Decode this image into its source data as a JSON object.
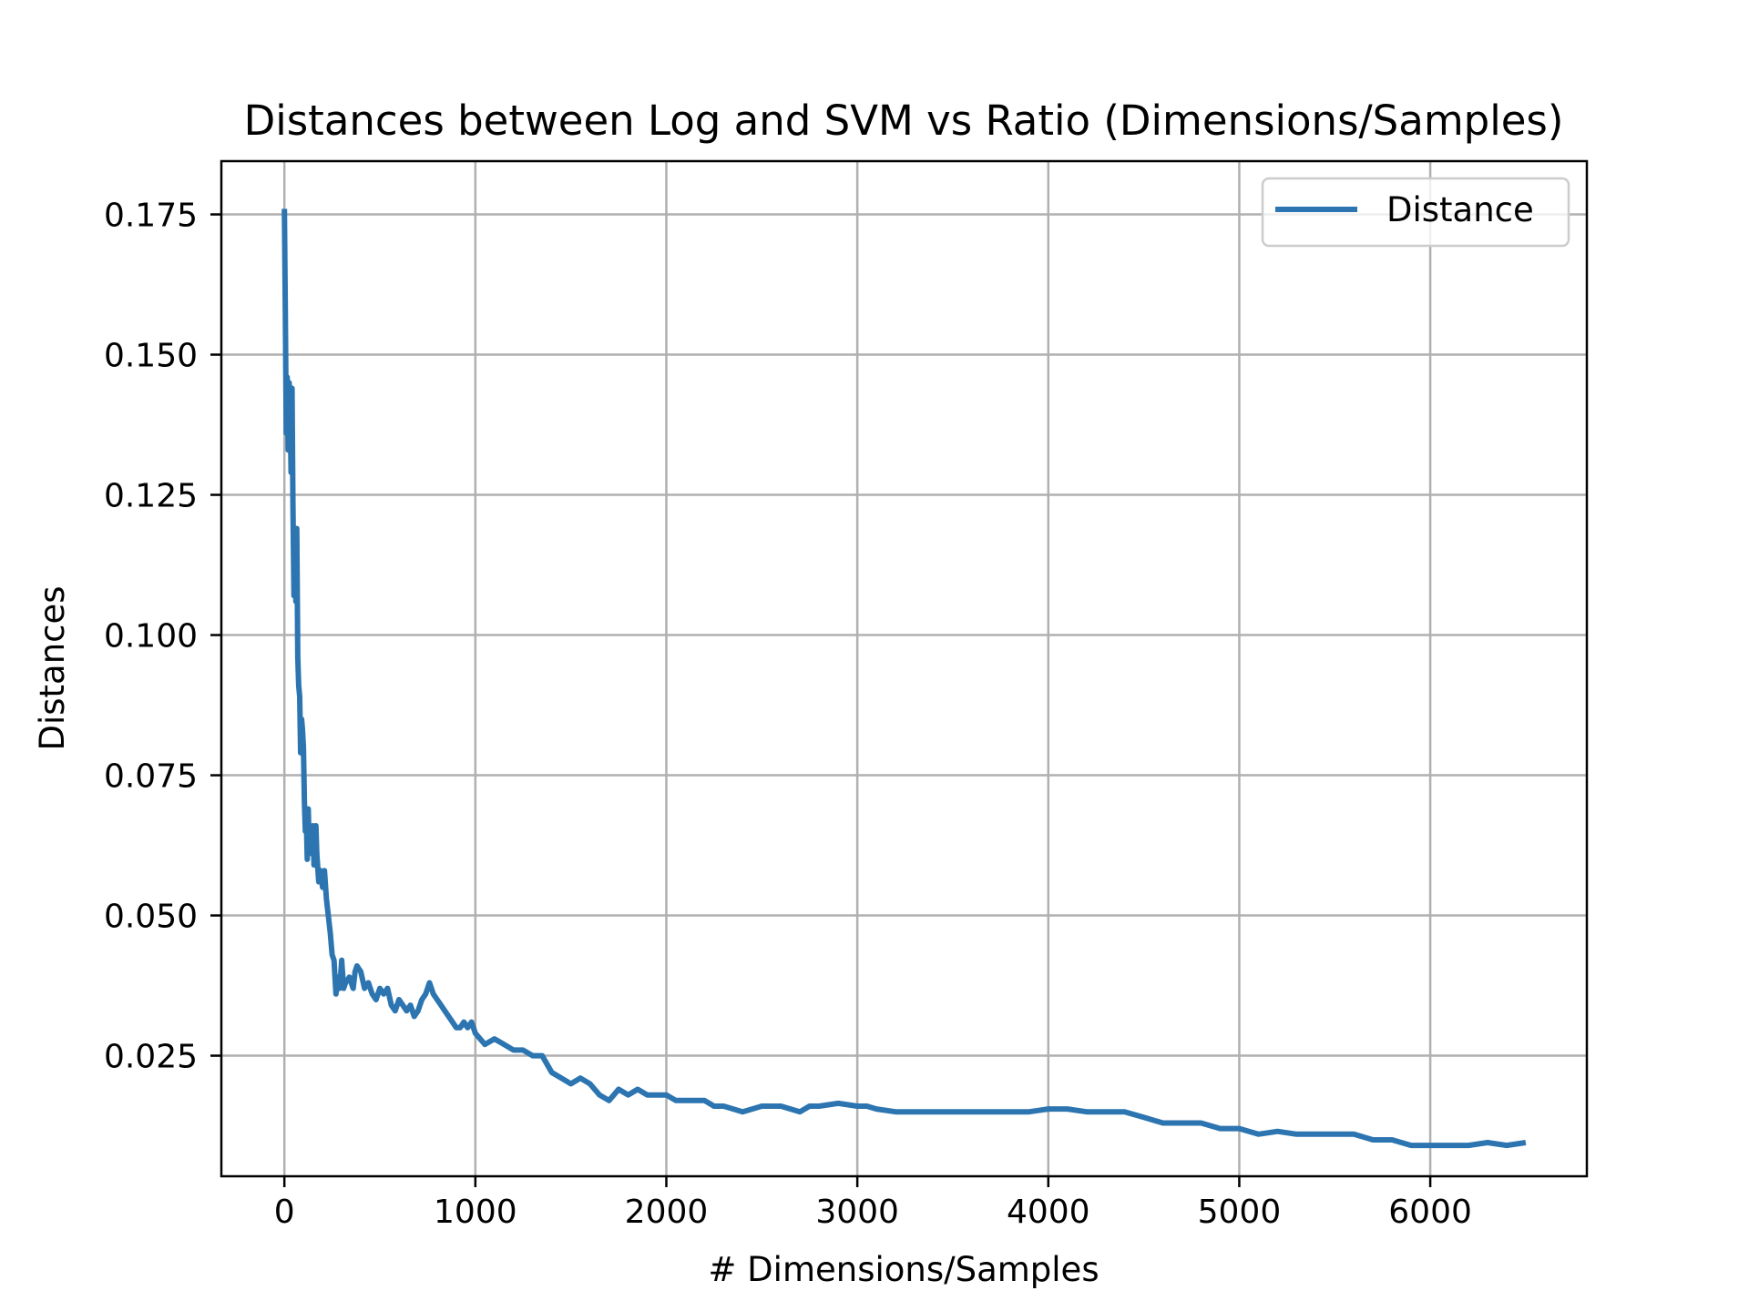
{
  "chart_data": {
    "type": "line",
    "title": "Distances between Log and SVM vs Ratio (Dimensions/Samples)",
    "xlabel": "# Dimensions/Samples",
    "ylabel": "Distances",
    "xlim": [
      -330,
      6820
    ],
    "ylim": [
      0.0035,
      0.1845
    ],
    "xticks": [
      0,
      1000,
      2000,
      3000,
      4000,
      5000,
      6000
    ],
    "xtick_labels": [
      "0",
      "1000",
      "2000",
      "3000",
      "4000",
      "5000",
      "6000"
    ],
    "yticks": [
      0.025,
      0.05,
      0.075,
      0.1,
      0.125,
      0.15,
      0.175
    ],
    "ytick_labels": [
      "0.025",
      "0.050",
      "0.075",
      "0.100",
      "0.125",
      "0.150",
      "0.175"
    ],
    "grid": true,
    "legend": {
      "position": "top-right"
    },
    "series": [
      {
        "name": "Distance",
        "color": "#2c75b0",
        "x": [
          0,
          5,
          10,
          15,
          20,
          25,
          30,
          35,
          40,
          45,
          50,
          55,
          60,
          65,
          70,
          75,
          80,
          85,
          90,
          95,
          100,
          105,
          110,
          115,
          120,
          125,
          130,
          135,
          140,
          145,
          150,
          155,
          160,
          165,
          170,
          180,
          190,
          200,
          210,
          220,
          230,
          240,
          250,
          260,
          270,
          280,
          290,
          300,
          310,
          320,
          340,
          360,
          370,
          380,
          400,
          420,
          440,
          460,
          480,
          500,
          520,
          540,
          560,
          580,
          600,
          620,
          640,
          660,
          680,
          700,
          720,
          740,
          760,
          780,
          800,
          820,
          840,
          860,
          880,
          900,
          920,
          940,
          960,
          980,
          1000,
          1050,
          1100,
          1150,
          1200,
          1250,
          1300,
          1350,
          1400,
          1450,
          1500,
          1550,
          1600,
          1650,
          1700,
          1750,
          1800,
          1850,
          1900,
          1950,
          2000,
          2050,
          2100,
          2150,
          2200,
          2250,
          2300,
          2400,
          2500,
          2600,
          2700,
          2750,
          2800,
          2900,
          3000,
          3050,
          3100,
          3200,
          3300,
          3400,
          3500,
          3600,
          3700,
          3800,
          3900,
          4000,
          4100,
          4200,
          4300,
          4400,
          4500,
          4600,
          4700,
          4800,
          4900,
          5000,
          5100,
          5200,
          5300,
          5400,
          5500,
          5600,
          5700,
          5800,
          5900,
          6000,
          6100,
          6200,
          6300,
          6400,
          6500
        ],
        "y": [
          0.176,
          0.158,
          0.136,
          0.146,
          0.133,
          0.145,
          0.142,
          0.129,
          0.144,
          0.123,
          0.107,
          0.119,
          0.106,
          0.119,
          0.096,
          0.091,
          0.089,
          0.079,
          0.085,
          0.083,
          0.08,
          0.07,
          0.065,
          0.067,
          0.06,
          0.069,
          0.063,
          0.062,
          0.065,
          0.061,
          0.066,
          0.059,
          0.064,
          0.066,
          0.061,
          0.056,
          0.058,
          0.055,
          0.058,
          0.053,
          0.05,
          0.047,
          0.043,
          0.042,
          0.036,
          0.039,
          0.037,
          0.042,
          0.037,
          0.038,
          0.039,
          0.037,
          0.04,
          0.041,
          0.04,
          0.037,
          0.038,
          0.036,
          0.035,
          0.037,
          0.036,
          0.037,
          0.034,
          0.033,
          0.035,
          0.034,
          0.033,
          0.034,
          0.032,
          0.033,
          0.035,
          0.036,
          0.038,
          0.036,
          0.035,
          0.034,
          0.033,
          0.032,
          0.031,
          0.03,
          0.03,
          0.031,
          0.03,
          0.031,
          0.029,
          0.027,
          0.028,
          0.027,
          0.026,
          0.026,
          0.025,
          0.025,
          0.022,
          0.021,
          0.02,
          0.021,
          0.02,
          0.018,
          0.017,
          0.019,
          0.018,
          0.019,
          0.018,
          0.018,
          0.018,
          0.017,
          0.017,
          0.017,
          0.017,
          0.016,
          0.016,
          0.015,
          0.016,
          0.016,
          0.015,
          0.016,
          0.016,
          0.0165,
          0.016,
          0.016,
          0.0155,
          0.015,
          0.015,
          0.015,
          0.015,
          0.015,
          0.015,
          0.015,
          0.015,
          0.0155,
          0.0155,
          0.015,
          0.015,
          0.015,
          0.014,
          0.013,
          0.013,
          0.013,
          0.012,
          0.012,
          0.011,
          0.0115,
          0.011,
          0.011,
          0.011,
          0.011,
          0.01,
          0.01,
          0.009,
          0.009,
          0.009,
          0.009,
          0.0095,
          0.009,
          0.0095
        ]
      }
    ]
  }
}
